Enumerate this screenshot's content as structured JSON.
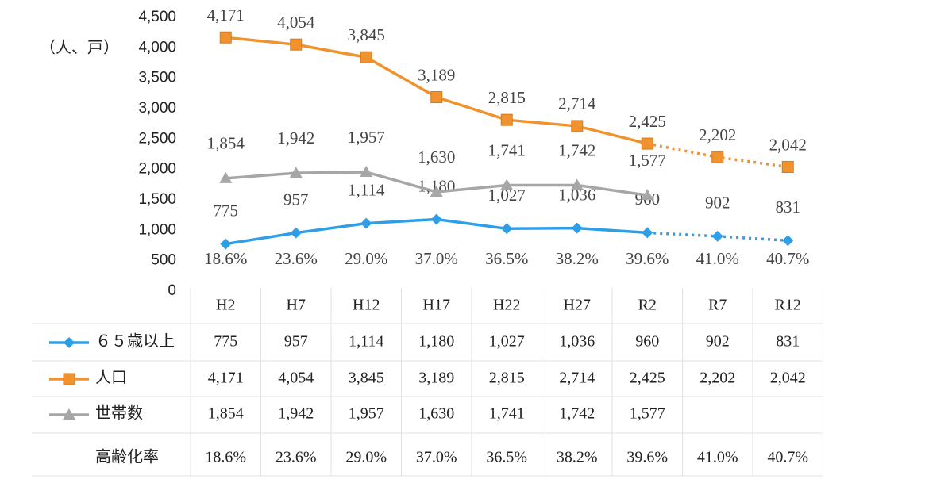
{
  "chart_data": {
    "type": "line",
    "y_label": "（人、戸）",
    "categories": [
      "H2",
      "H7",
      "H12",
      "H17",
      "H22",
      "H27",
      "R2",
      "R7",
      "R12"
    ],
    "forecast_from": "R2",
    "ylim": [
      0,
      4500
    ],
    "yticks": [
      0,
      500,
      {
        "value": 1000,
        "label": "1,000"
      },
      {
        "value": 1500,
        "label": "1,500"
      },
      {
        "value": 2000,
        "label": "2,000"
      },
      {
        "value": 2500,
        "label": "2,500"
      },
      {
        "value": 3000,
        "label": "3,000"
      },
      {
        "value": 3500,
        "label": "3,500"
      },
      {
        "value": 4000,
        "label": "4,000"
      },
      {
        "value": 4500,
        "label": "4,500"
      }
    ],
    "series": [
      {
        "name": "６５歳以上",
        "color": "#2e9fe6",
        "marker": "diamond",
        "values": [
          775,
          957,
          1114,
          1180,
          1027,
          1036,
          960,
          902,
          831
        ],
        "value_labels": [
          "775",
          "957",
          "1,114",
          "1,180",
          "1,027",
          "1,036",
          "960",
          "902",
          "831"
        ]
      },
      {
        "name": "人口",
        "color": "#f0922e",
        "marker": "square",
        "values": [
          4171,
          4054,
          3845,
          3189,
          2815,
          2714,
          2425,
          2202,
          2042
        ],
        "value_labels": [
          "4,171",
          "4,054",
          "3,845",
          "3,189",
          "2,815",
          "2,714",
          "2,425",
          "2,202",
          "2,042"
        ]
      },
      {
        "name": "世帯数",
        "color": "#a6a6a6",
        "marker": "triangle",
        "values": [
          1854,
          1942,
          1957,
          1630,
          1741,
          1742,
          1577,
          null,
          null
        ],
        "value_labels": [
          "1,854",
          "1,942",
          "1,957",
          "1,630",
          "1,741",
          "1,742",
          "1,577",
          null,
          null
        ]
      }
    ],
    "rate": {
      "name": "高齢化率",
      "values": [
        18.6,
        23.6,
        29.0,
        37.0,
        36.5,
        38.2,
        39.6,
        41.0,
        40.7
      ],
      "value_labels": [
        "18.6%",
        "23.6%",
        "29.0%",
        "37.0%",
        "36.5%",
        "38.2%",
        "39.6%",
        "41.0%",
        "40.7%"
      ]
    }
  }
}
